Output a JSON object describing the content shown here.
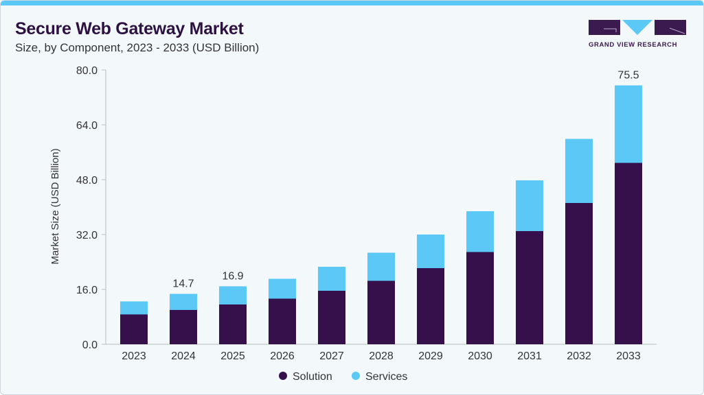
{
  "header": {
    "title": "Secure Web Gateway Market",
    "subtitle": "Size, by Component, 2023 - 2033 (USD Billion)",
    "logo_text": "GRAND VIEW RESEARCH"
  },
  "colors": {
    "solution": "#35104a",
    "services": "#5bc8f5",
    "brand": "#3a1a4f"
  },
  "chart_data": {
    "type": "bar",
    "stacked": true,
    "categories": [
      "2023",
      "2024",
      "2025",
      "2026",
      "2027",
      "2028",
      "2029",
      "2030",
      "2031",
      "2032",
      "2033"
    ],
    "series": [
      {
        "name": "Solution",
        "values": [
          8.7,
          10.0,
          11.6,
          13.3,
          15.6,
          18.5,
          22.2,
          26.9,
          33.0,
          41.2,
          52.9
        ]
      },
      {
        "name": "Services",
        "values": [
          3.8,
          4.7,
          5.3,
          5.8,
          7.0,
          8.2,
          9.8,
          11.9,
          14.8,
          18.7,
          22.6
        ]
      }
    ],
    "totals_labels": {
      "1": "14.7",
      "2": "16.9",
      "10": "75.5"
    },
    "ylabel": "Market Size (USD Billion)",
    "ylim": [
      0,
      80
    ],
    "yticks": [
      "0.0",
      "16.0",
      "32.0",
      "48.0",
      "64.0",
      "80.0"
    ],
    "grid": false,
    "legend": "bottom"
  }
}
